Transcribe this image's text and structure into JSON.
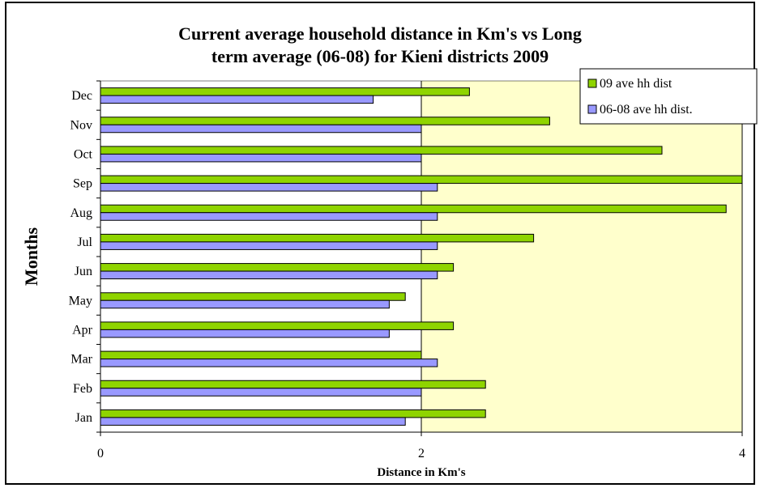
{
  "chart_data": {
    "type": "bar",
    "orientation": "horizontal",
    "title_lines": [
      "Current average household distance in Km's vs Long",
      "term average (06-08) for Kieni districts 2009"
    ],
    "xlabel": "Distance in Km's",
    "ylabel": "Months",
    "xlim": [
      0,
      4
    ],
    "xticks": [
      "0",
      "2",
      "4"
    ],
    "categories": [
      "Jan",
      "Feb",
      "Mar",
      "Apr",
      "May",
      "Jun",
      "Jul",
      "Aug",
      "Sep",
      "Oct",
      "Nov",
      "Dec"
    ],
    "series": [
      {
        "name": "09 ave hh dist",
        "color": "#8fd400",
        "values": [
          2.4,
          2.4,
          2.0,
          2.2,
          1.9,
          2.2,
          2.7,
          3.9,
          4.0,
          3.5,
          2.8,
          2.3
        ]
      },
      {
        "name": "06-08 ave hh dist.",
        "color": "#9999ff",
        "values": [
          1.9,
          2.0,
          2.1,
          1.8,
          1.8,
          2.1,
          2.1,
          2.1,
          2.1,
          2.0,
          2.0,
          1.7
        ]
      }
    ],
    "grid": "vertical",
    "legend_position": "top-right",
    "plot_background": "#ffffcc"
  }
}
